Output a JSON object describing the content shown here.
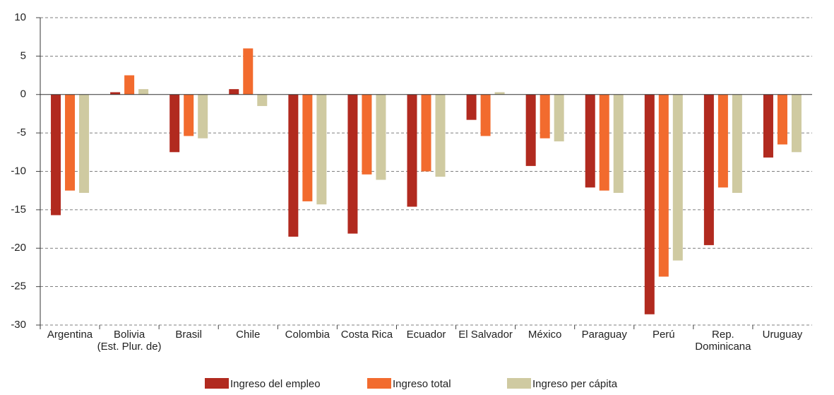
{
  "chart_data": {
    "type": "bar",
    "categories": [
      "Argentina",
      "Bolivia\n(Est. Plur. de)",
      "Brasil",
      "Chile",
      "Colombia",
      "Costa Rica",
      "Ecuador",
      "El Salvador",
      "México",
      "Paraguay",
      "Perú",
      "Rep.\nDominicana",
      "Uruguay"
    ],
    "series": [
      {
        "name": "Ingreso del empleo",
        "color": "#b12a1f",
        "values": [
          -15.7,
          0.3,
          -7.5,
          0.7,
          -18.5,
          -18.1,
          -14.6,
          -3.3,
          -9.3,
          -12.1,
          -28.6,
          -19.6,
          -8.2
        ]
      },
      {
        "name": "Ingreso total",
        "color": "#f26b2e",
        "values": [
          -12.5,
          2.5,
          -5.4,
          6.0,
          -13.9,
          -10.4,
          -10.0,
          -5.4,
          -5.7,
          -12.5,
          -23.7,
          -12.1,
          -6.5
        ]
      },
      {
        "name": "Ingreso per cápita",
        "color": "#cfcaa1",
        "values": [
          -12.8,
          0.7,
          -5.7,
          -1.5,
          -14.3,
          -11.1,
          -10.7,
          0.3,
          -6.1,
          -12.8,
          -21.6,
          -12.8,
          -7.5
        ]
      }
    ],
    "ylim": [
      -30,
      10
    ],
    "yticks": [
      -30,
      -25,
      -20,
      -15,
      -10,
      -5,
      0,
      5,
      10
    ],
    "grid": true,
    "legend": "bottom"
  }
}
